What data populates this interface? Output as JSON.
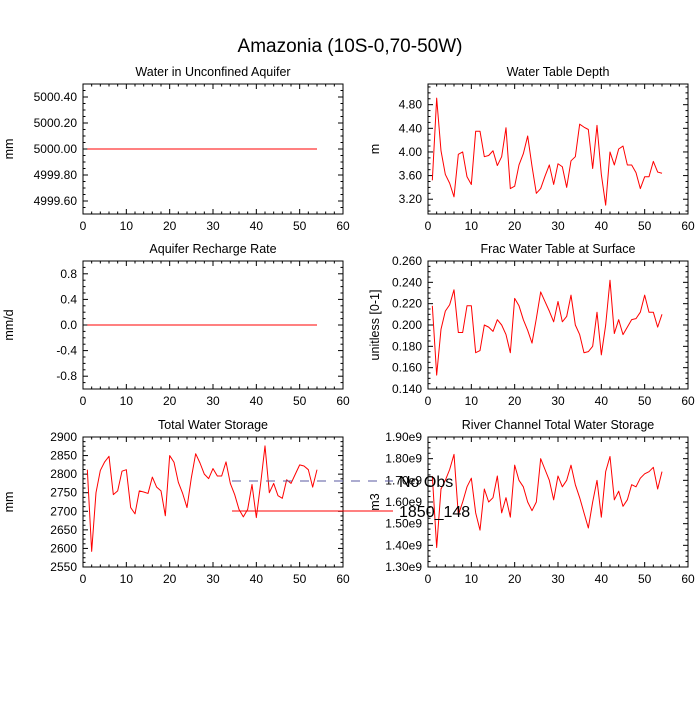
{
  "figure": {
    "title": "Amazonia (10S-0,70-50W)"
  },
  "legend": {
    "placement": "bottom-center",
    "items": [
      {
        "label": "No Obs",
        "color": "#5a5aa0",
        "style": "dashed"
      },
      {
        "label": "1850_148",
        "color": "#ff0000",
        "style": "solid"
      }
    ]
  },
  "chart_data": [
    {
      "type": "line",
      "title": "Water in Unconfined Aquifer",
      "ylabel": "mm",
      "xlim": [
        0,
        60
      ],
      "ylim": [
        4999.5,
        5000.5
      ],
      "xticks": [
        0,
        10,
        20,
        30,
        40,
        50,
        60
      ],
      "yticks": [
        4999.6,
        4999.8,
        5000.0,
        5000.2,
        5000.4
      ],
      "ytick_labels": [
        "4999.60",
        "4999.80",
        "5000.00",
        "5000.20",
        "5000.40"
      ],
      "series": [
        {
          "name": "1850_148",
          "color": "#ff0000",
          "x": [
            1,
            54
          ],
          "y": [
            5000.0,
            5000.0
          ]
        }
      ]
    },
    {
      "type": "line",
      "title": "Water Table Depth",
      "ylabel": "m",
      "xlim": [
        0,
        60
      ],
      "ylim": [
        2.95,
        5.15
      ],
      "xticks": [
        0,
        10,
        20,
        30,
        40,
        50,
        60
      ],
      "yticks": [
        3.2,
        3.6,
        4.0,
        4.4,
        4.8
      ],
      "ytick_labels": [
        "3.20",
        "3.60",
        "4.00",
        "4.40",
        "4.80"
      ],
      "series": [
        {
          "name": "1850_148",
          "color": "#ff0000",
          "x": [
            1,
            2,
            3,
            4,
            5,
            6,
            7,
            8,
            9,
            10,
            11,
            12,
            13,
            14,
            15,
            16,
            17,
            18,
            19,
            20,
            21,
            22,
            23,
            24,
            25,
            26,
            27,
            28,
            29,
            30,
            31,
            32,
            33,
            34,
            35,
            36,
            37,
            38,
            39,
            40,
            41,
            42,
            43,
            44,
            45,
            46,
            47,
            48,
            49,
            50,
            51,
            52,
            53,
            54
          ],
          "y": [
            3.52,
            4.91,
            4.02,
            3.62,
            3.47,
            3.24,
            3.96,
            4.0,
            3.58,
            3.45,
            4.35,
            4.35,
            3.92,
            3.94,
            4.02,
            3.77,
            3.92,
            4.41,
            3.38,
            3.42,
            3.78,
            3.97,
            4.27,
            3.76,
            3.3,
            3.38,
            3.59,
            3.78,
            3.45,
            3.8,
            3.75,
            3.4,
            3.85,
            3.92,
            4.47,
            4.42,
            4.38,
            3.72,
            4.45,
            3.62,
            3.1,
            4.0,
            3.78,
            4.05,
            4.1,
            3.78,
            3.78,
            3.65,
            3.38,
            3.58,
            3.58,
            3.84,
            3.66,
            3.64
          ]
        }
      ]
    },
    {
      "type": "line",
      "title": "Aquifer Recharge Rate",
      "ylabel": "mm/d",
      "xlim": [
        0,
        60
      ],
      "ylim": [
        -1.0,
        1.0
      ],
      "xticks": [
        0,
        10,
        20,
        30,
        40,
        50,
        60
      ],
      "yticks": [
        -0.8,
        -0.4,
        0.0,
        0.4,
        0.8
      ],
      "ytick_labels": [
        "-0.8",
        "-0.4",
        "0.0",
        "0.4",
        "0.8"
      ],
      "series": [
        {
          "name": "1850_148",
          "color": "#ff0000",
          "x": [
            1,
            54
          ],
          "y": [
            0.0,
            0.0
          ]
        }
      ]
    },
    {
      "type": "line",
      "title": "Frac Water Table at Surface",
      "ylabel": "unitless [0-1]",
      "xlim": [
        0,
        60
      ],
      "ylim": [
        0.14,
        0.26
      ],
      "xticks": [
        0,
        10,
        20,
        30,
        40,
        50,
        60
      ],
      "yticks": [
        0.14,
        0.16,
        0.18,
        0.2,
        0.22,
        0.24,
        0.26
      ],
      "ytick_labels": [
        "0.140",
        "0.160",
        "0.180",
        "0.200",
        "0.220",
        "0.240",
        "0.260"
      ],
      "series": [
        {
          "name": "1850_148",
          "color": "#ff0000",
          "x": [
            1,
            2,
            3,
            4,
            5,
            6,
            7,
            8,
            9,
            10,
            11,
            12,
            13,
            14,
            15,
            16,
            17,
            18,
            19,
            20,
            21,
            22,
            23,
            24,
            25,
            26,
            27,
            28,
            29,
            30,
            31,
            32,
            33,
            34,
            35,
            36,
            37,
            38,
            39,
            40,
            41,
            42,
            43,
            44,
            45,
            46,
            47,
            48,
            49,
            50,
            51,
            52,
            53,
            54
          ],
          "y": [
            0.218,
            0.153,
            0.196,
            0.213,
            0.219,
            0.233,
            0.193,
            0.193,
            0.218,
            0.218,
            0.174,
            0.176,
            0.2,
            0.198,
            0.194,
            0.205,
            0.2,
            0.191,
            0.174,
            0.225,
            0.218,
            0.205,
            0.195,
            0.183,
            0.206,
            0.231,
            0.222,
            0.213,
            0.203,
            0.222,
            0.203,
            0.208,
            0.228,
            0.2,
            0.191,
            0.174,
            0.175,
            0.18,
            0.212,
            0.172,
            0.2,
            0.242,
            0.192,
            0.205,
            0.191,
            0.198,
            0.205,
            0.206,
            0.212,
            0.228,
            0.212,
            0.212,
            0.198,
            0.21
          ]
        }
      ]
    },
    {
      "type": "line",
      "title": "Total Water Storage",
      "ylabel": "mm",
      "xlim": [
        0,
        60
      ],
      "ylim": [
        2550,
        2900
      ],
      "xticks": [
        0,
        10,
        20,
        30,
        40,
        50,
        60
      ],
      "yticks": [
        2550,
        2600,
        2650,
        2700,
        2750,
        2800,
        2850,
        2900
      ],
      "ytick_labels": [
        "2550",
        "2600",
        "2650",
        "2700",
        "2750",
        "2800",
        "2850",
        "2900"
      ],
      "series": [
        {
          "name": "1850_148",
          "color": "#ff0000",
          "x": [
            1,
            2,
            3,
            4,
            5,
            6,
            7,
            8,
            9,
            10,
            11,
            12,
            13,
            14,
            15,
            16,
            17,
            18,
            19,
            20,
            21,
            22,
            23,
            24,
            25,
            26,
            27,
            28,
            29,
            30,
            31,
            32,
            33,
            34,
            35,
            36,
            37,
            38,
            39,
            40,
            41,
            42,
            43,
            44,
            45,
            46,
            47,
            48,
            49,
            50,
            51,
            52,
            53,
            54
          ],
          "y": [
            2812,
            2592,
            2750,
            2810,
            2833,
            2848,
            2745,
            2755,
            2808,
            2812,
            2710,
            2693,
            2755,
            2752,
            2748,
            2792,
            2765,
            2755,
            2688,
            2850,
            2832,
            2778,
            2748,
            2710,
            2790,
            2855,
            2830,
            2800,
            2788,
            2815,
            2795,
            2795,
            2833,
            2775,
            2745,
            2705,
            2685,
            2705,
            2772,
            2683,
            2775,
            2876,
            2750,
            2775,
            2742,
            2735,
            2785,
            2775,
            2800,
            2825,
            2822,
            2812,
            2765,
            2812
          ]
        }
      ]
    },
    {
      "type": "line",
      "title": "River Channel Total Water Storage",
      "ylabel": "m3",
      "xlim": [
        0,
        60
      ],
      "ylim": [
        1300000000.0,
        1900000000.0
      ],
      "xticks": [
        0,
        10,
        20,
        30,
        40,
        50,
        60
      ],
      "yticks": [
        1300000000.0,
        1400000000.0,
        1500000000.0,
        1600000000.0,
        1700000000.0,
        1800000000.0,
        1900000000.0
      ],
      "ytick_labels": [
        "1.30e9",
        "1.40e9",
        "1.50e9",
        "1.60e9",
        "1.70e9",
        "1.80e9",
        "1.90e9"
      ],
      "series": [
        {
          "name": "1850_148",
          "color": "#ff0000",
          "x": [
            1,
            2,
            3,
            4,
            5,
            6,
            7,
            8,
            9,
            10,
            11,
            12,
            13,
            14,
            15,
            16,
            17,
            18,
            19,
            20,
            21,
            22,
            23,
            24,
            25,
            26,
            27,
            28,
            29,
            30,
            31,
            32,
            33,
            34,
            35,
            36,
            37,
            38,
            39,
            40,
            41,
            42,
            43,
            44,
            45,
            46,
            47,
            48,
            49,
            50,
            51,
            52,
            53,
            54
          ],
          "y": [
            1720000000.0,
            1390000000.0,
            1660000000.0,
            1700000000.0,
            1750000000.0,
            1820000000.0,
            1540000000.0,
            1600000000.0,
            1670000000.0,
            1710000000.0,
            1550000000.0,
            1470000000.0,
            1660000000.0,
            1600000000.0,
            1620000000.0,
            1720000000.0,
            1550000000.0,
            1620000000.0,
            1530000000.0,
            1770000000.0,
            1700000000.0,
            1670000000.0,
            1600000000.0,
            1560000000.0,
            1600000000.0,
            1800000000.0,
            1750000000.0,
            1700000000.0,
            1610000000.0,
            1720000000.0,
            1670000000.0,
            1700000000.0,
            1770000000.0,
            1680000000.0,
            1620000000.0,
            1550000000.0,
            1480000000.0,
            1600000000.0,
            1700000000.0,
            1530000000.0,
            1740000000.0,
            1810000000.0,
            1610000000.0,
            1650000000.0,
            1580000000.0,
            1610000000.0,
            1680000000.0,
            1670000000.0,
            1710000000.0,
            1730000000.0,
            1740000000.0,
            1760000000.0,
            1660000000.0,
            1740000000.0
          ]
        }
      ]
    }
  ]
}
